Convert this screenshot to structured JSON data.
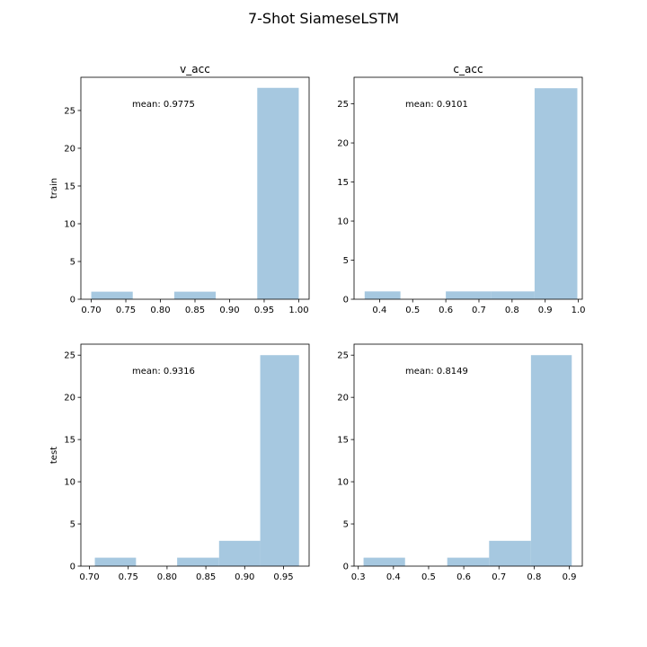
{
  "chart_data": {
    "type": "bar",
    "title": "7-Shot SiameseLSTM",
    "row_labels": [
      "train",
      "test"
    ],
    "bar_color": "#a6c8e0",
    "panels": [
      {
        "title": "v_acc",
        "ylabel": "train",
        "annotation": "mean: 0.9775",
        "xlim": [
          0.685,
          1.015
        ],
        "ylim": [
          0,
          29.4
        ],
        "xticks": [
          0.7,
          0.75,
          0.8,
          0.85,
          0.9,
          0.95,
          1.0
        ],
        "xtick_labels": [
          "0.70",
          "0.75",
          "0.80",
          "0.85",
          "0.90",
          "0.95",
          "1.00"
        ],
        "yticks": [
          0,
          5,
          10,
          15,
          20,
          25
        ],
        "yticks_labels": [
          "0",
          "5",
          "10",
          "15",
          "20",
          "25"
        ],
        "bins": [
          {
            "x0": 0.7,
            "x1": 0.76,
            "value": 1
          },
          {
            "x0": 0.76,
            "x1": 0.82,
            "value": 0
          },
          {
            "x0": 0.82,
            "x1": 0.88,
            "value": 1
          },
          {
            "x0": 0.88,
            "x1": 0.94,
            "value": 0
          },
          {
            "x0": 0.94,
            "x1": 1.0,
            "value": 28
          }
        ]
      },
      {
        "title": "c_acc",
        "ylabel": "",
        "annotation": "mean: 0.9101",
        "xlim": [
          0.323,
          1.012
        ],
        "ylim": [
          0,
          28.4
        ],
        "xticks": [
          0.4,
          0.5,
          0.6,
          0.7,
          0.8,
          0.9,
          1.0
        ],
        "xtick_labels": [
          "0.4",
          "0.5",
          "0.6",
          "0.7",
          "0.8",
          "0.9",
          "1.0"
        ],
        "yticks": [
          0,
          5,
          10,
          15,
          20,
          25
        ],
        "yticks_labels": [
          "0",
          "5",
          "10",
          "15",
          "20",
          "25"
        ],
        "bins": [
          {
            "x0": 0.355,
            "x1": 0.463,
            "value": 1
          },
          {
            "x0": 0.463,
            "x1": 0.6,
            "value": 0
          },
          {
            "x0": 0.6,
            "x1": 0.737,
            "value": 1
          },
          {
            "x0": 0.737,
            "x1": 0.868,
            "value": 1
          },
          {
            "x0": 0.868,
            "x1": 0.997,
            "value": 27
          }
        ]
      },
      {
        "title": "",
        "ylabel": "test",
        "annotation": "mean: 0.9316",
        "xlim": [
          0.689,
          0.983
        ],
        "ylim": [
          0,
          26.3
        ],
        "xticks": [
          0.7,
          0.75,
          0.8,
          0.85,
          0.9,
          0.95
        ],
        "xtick_labels": [
          "0.70",
          "0.75",
          "0.80",
          "0.85",
          "0.90",
          "0.95"
        ],
        "yticks": [
          0,
          5,
          10,
          15,
          20,
          25
        ],
        "yticks_labels": [
          "0",
          "5",
          "10",
          "15",
          "20",
          "25"
        ],
        "bins": [
          {
            "x0": 0.707,
            "x1": 0.76,
            "value": 1
          },
          {
            "x0": 0.76,
            "x1": 0.813,
            "value": 0
          },
          {
            "x0": 0.813,
            "x1": 0.867,
            "value": 1
          },
          {
            "x0": 0.867,
            "x1": 0.92,
            "value": 3
          },
          {
            "x0": 0.92,
            "x1": 0.97,
            "value": 25
          }
        ]
      },
      {
        "title": "",
        "ylabel": "",
        "annotation": "mean: 0.8149",
        "xlim": [
          0.288,
          0.937
        ],
        "ylim": [
          0,
          26.3
        ],
        "xticks": [
          0.3,
          0.4,
          0.5,
          0.6,
          0.7,
          0.8,
          0.9
        ],
        "xtick_labels": [
          "0.3",
          "0.4",
          "0.5",
          "0.6",
          "0.7",
          "0.8",
          "0.9"
        ],
        "yticks": [
          0,
          5,
          10,
          15,
          20,
          25
        ],
        "yticks_labels": [
          "0",
          "5",
          "10",
          "15",
          "20",
          "25"
        ],
        "bins": [
          {
            "x0": 0.315,
            "x1": 0.433,
            "value": 1
          },
          {
            "x0": 0.433,
            "x1": 0.553,
            "value": 0
          },
          {
            "x0": 0.553,
            "x1": 0.672,
            "value": 1
          },
          {
            "x0": 0.672,
            "x1": 0.791,
            "value": 3
          },
          {
            "x0": 0.791,
            "x1": 0.907,
            "value": 25
          }
        ]
      }
    ]
  }
}
